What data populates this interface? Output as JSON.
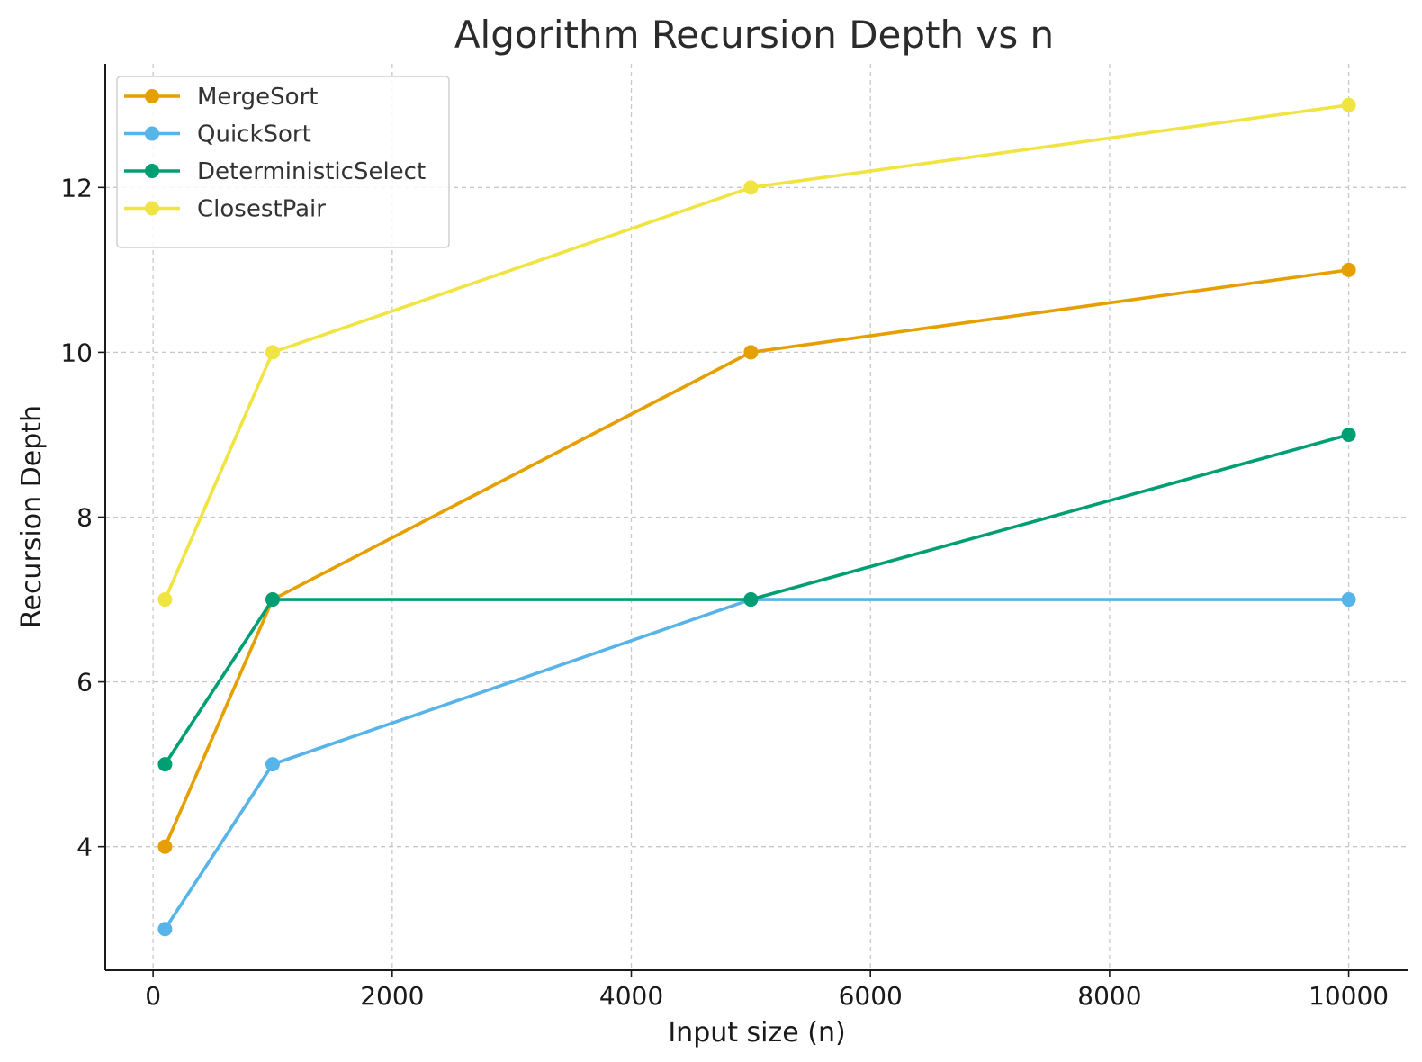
{
  "chart_data": {
    "type": "line",
    "title": "Algorithm Recursion Depth vs n",
    "xlabel": "Input size (n)",
    "ylabel": "Recursion Depth",
    "x": [
      100,
      1000,
      5000,
      10000
    ],
    "xlim": [
      -400,
      10500
    ],
    "ylim": [
      2.5,
      13.5
    ],
    "xticks": [
      0,
      2000,
      4000,
      6000,
      8000,
      10000
    ],
    "yticks": [
      4,
      6,
      8,
      10,
      12
    ],
    "grid": true,
    "legend_position": "top-left",
    "series": [
      {
        "name": "MergeSort",
        "color": "#E69F00",
        "values": [
          4,
          7,
          10,
          11
        ]
      },
      {
        "name": "QuickSort",
        "color": "#56B4E9",
        "values": [
          3,
          5,
          7,
          7
        ]
      },
      {
        "name": "DeterministicSelect",
        "color": "#009E73",
        "values": [
          5,
          7,
          7,
          9
        ]
      },
      {
        "name": "ClosestPair",
        "color": "#F0E442",
        "values": [
          7,
          10,
          12,
          13
        ]
      }
    ]
  }
}
